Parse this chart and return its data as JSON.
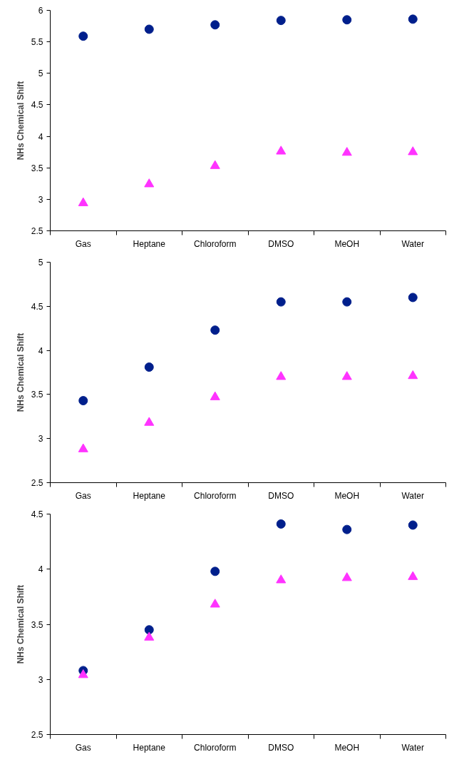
{
  "chart_data": [
    {
      "type": "scatter",
      "ylabel": "NHs Chemical Shift",
      "categories": [
        "Gas",
        "Heptane",
        "Chloroform",
        "DMSO",
        "MeOH",
        "Water"
      ],
      "ylim": [
        2.5,
        6
      ],
      "yticks": [
        2.5,
        3,
        3.5,
        4,
        4.5,
        5,
        5.5,
        6
      ],
      "grid": false,
      "series": [
        {
          "color": "#001f8c",
          "marker": "circle",
          "values": [
            5.59,
            5.7,
            5.77,
            5.84,
            5.85,
            5.86
          ]
        },
        {
          "color": "#ff33ff",
          "marker": "triangle",
          "values": [
            2.94,
            3.24,
            3.53,
            3.76,
            3.74,
            3.75
          ]
        }
      ]
    },
    {
      "type": "scatter",
      "ylabel": "NHs Chemical Shift",
      "categories": [
        "Gas",
        "Heptane",
        "Chloroform",
        "DMSO",
        "MeOH",
        "Water"
      ],
      "ylim": [
        2.5,
        5
      ],
      "yticks": [
        2.5,
        3,
        3.5,
        4,
        4.5,
        5
      ],
      "grid": false,
      "series": [
        {
          "color": "#001f8c",
          "marker": "circle",
          "values": [
            3.43,
            3.81,
            4.23,
            4.55,
            4.55,
            4.6
          ]
        },
        {
          "color": "#ff33ff",
          "marker": "triangle",
          "values": [
            2.88,
            3.18,
            3.47,
            3.7,
            3.7,
            3.71
          ]
        }
      ]
    },
    {
      "type": "scatter",
      "ylabel": "NHs Chemical Shift",
      "categories": [
        "Gas",
        "Heptane",
        "Chloroform",
        "DMSO",
        "MeOH",
        "Water"
      ],
      "ylim": [
        2.5,
        4.5
      ],
      "yticks": [
        2.5,
        3,
        3.5,
        4,
        4.5
      ],
      "grid": false,
      "series": [
        {
          "color": "#001f8c",
          "marker": "circle",
          "values": [
            3.08,
            3.45,
            3.98,
            4.41,
            4.36,
            4.4
          ]
        },
        {
          "color": "#ff33ff",
          "marker": "triangle",
          "values": [
            3.04,
            3.38,
            3.68,
            3.9,
            3.92,
            3.93
          ]
        }
      ]
    }
  ]
}
